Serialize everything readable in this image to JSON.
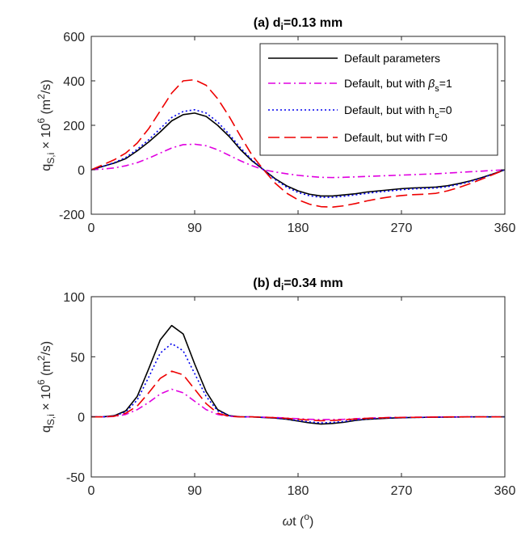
{
  "chart_data": [
    {
      "type": "line",
      "title": "(a) d",
      "title_sub": "i",
      "title_tail": "=0.13 mm",
      "ylabel": {
        "base": "q",
        "sub": "S,i",
        "mid": " × 10",
        "sup": "6",
        "unit_open": " (m",
        "unit_sup": "2",
        "unit_close": "/s)"
      },
      "xlabel": "",
      "xlim": [
        0,
        360
      ],
      "ylim": [
        -200,
        600
      ],
      "xticks": [
        0,
        90,
        180,
        270,
        360
      ],
      "yticks": [
        -200,
        0,
        200,
        400,
        600
      ],
      "xtick_labels": [
        "0",
        "90",
        "180",
        "270",
        "360"
      ],
      "ytick_labels": [
        "-200",
        "0",
        "200",
        "400",
        "600"
      ],
      "grid": false,
      "legend_position": "top-right",
      "x": [
        0,
        10,
        20,
        30,
        40,
        50,
        60,
        70,
        80,
        90,
        100,
        110,
        120,
        130,
        140,
        150,
        160,
        170,
        180,
        190,
        200,
        210,
        220,
        230,
        240,
        250,
        260,
        270,
        280,
        290,
        300,
        310,
        320,
        330,
        340,
        350,
        360
      ],
      "series": [
        {
          "name": "Default parameters",
          "color": "#000000",
          "dash": "none",
          "values": [
            0,
            15,
            30,
            50,
            85,
            125,
            170,
            220,
            248,
            255,
            240,
            200,
            150,
            90,
            40,
            0,
            -40,
            -72,
            -95,
            -110,
            -118,
            -118,
            -113,
            -108,
            -100,
            -95,
            -90,
            -85,
            -82,
            -80,
            -78,
            -72,
            -62,
            -50,
            -35,
            -18,
            0
          ]
        },
        {
          "name_prefix": "Default, but with ",
          "name_sym": "β",
          "name_sub": "s",
          "name_tail": "=1",
          "color": "#e000e0",
          "dash": "9,4,2,4",
          "values": [
            0,
            3,
            8,
            18,
            32,
            52,
            75,
            98,
            113,
            115,
            108,
            90,
            65,
            40,
            18,
            0,
            -10,
            -18,
            -25,
            -30,
            -34,
            -35,
            -34,
            -32,
            -30,
            -28,
            -26,
            -24,
            -22,
            -20,
            -18,
            -15,
            -12,
            -9,
            -6,
            -3,
            0
          ]
        },
        {
          "name_prefix": "Default, but with h",
          "name_sub": "c",
          "name_tail": "=0",
          "color": "#0000ee",
          "dash": "2,3",
          "values": [
            0,
            15,
            32,
            55,
            92,
            135,
            185,
            235,
            262,
            270,
            255,
            215,
            160,
            98,
            44,
            0,
            -44,
            -78,
            -102,
            -117,
            -124,
            -124,
            -119,
            -113,
            -106,
            -100,
            -95,
            -90,
            -86,
            -84,
            -82,
            -76,
            -66,
            -53,
            -37,
            -19,
            0
          ]
        },
        {
          "name_prefix": "Default, but with ",
          "name_sym": "Γ",
          "name_sub": "",
          "name_tail": "=0",
          "color": "#ee0000",
          "dash": "14,6",
          "values": [
            0,
            22,
            45,
            75,
            120,
            185,
            265,
            345,
            400,
            405,
            380,
            320,
            240,
            150,
            65,
            0,
            -60,
            -105,
            -135,
            -155,
            -166,
            -168,
            -162,
            -152,
            -140,
            -130,
            -122,
            -116,
            -112,
            -110,
            -106,
            -95,
            -80,
            -62,
            -42,
            -21,
            0
          ]
        }
      ]
    },
    {
      "type": "line",
      "title": "(b) d",
      "title_sub": "i",
      "title_tail": "=0.34 mm",
      "ylabel": {
        "base": "q",
        "sub": "S,i",
        "mid": " × 10",
        "sup": "6",
        "unit_open": " (m",
        "unit_sup": "2",
        "unit_close": "/s)"
      },
      "xlabel": {
        "sym": "ω",
        "base": "t (",
        "sup": "o",
        "close": ")"
      },
      "xlim": [
        0,
        360
      ],
      "ylim": [
        -50,
        100
      ],
      "xticks": [
        0,
        90,
        180,
        270,
        360
      ],
      "yticks": [
        -50,
        0,
        50,
        100
      ],
      "xtick_labels": [
        "0",
        "90",
        "180",
        "270",
        "360"
      ],
      "ytick_labels": [
        "-50",
        "0",
        "50",
        "100"
      ],
      "grid": false,
      "x": [
        0,
        10,
        20,
        30,
        40,
        50,
        60,
        70,
        80,
        90,
        100,
        110,
        120,
        130,
        140,
        150,
        160,
        170,
        180,
        190,
        200,
        210,
        220,
        230,
        240,
        250,
        260,
        270,
        280,
        290,
        300,
        310,
        320,
        330,
        340,
        350,
        360
      ],
      "series": [
        {
          "name": "Default parameters",
          "color": "#000000",
          "dash": "none",
          "values": [
            0,
            0,
            1,
            5,
            17,
            40,
            64,
            76,
            69,
            44,
            21,
            6,
            1,
            0,
            0,
            -0.5,
            -1,
            -2,
            -3.5,
            -5,
            -6,
            -5.5,
            -4.5,
            -3,
            -2,
            -1.5,
            -1,
            -0.8,
            -0.5,
            -0.4,
            -0.3,
            -0.2,
            -0.1,
            0,
            0,
            0,
            0
          ]
        },
        {
          "name_prefix": "Default, but with ",
          "name_sym": "β",
          "name_sub": "s",
          "name_tail": "=1",
          "color": "#e000e0",
          "dash": "9,4,2,4",
          "values": [
            0,
            0,
            0.3,
            2,
            6,
            12,
            19,
            23,
            20,
            13,
            6,
            2,
            0.5,
            0,
            0,
            -0.3,
            -0.5,
            -1,
            -1.5,
            -2,
            -2.3,
            -2.2,
            -2,
            -1.5,
            -1.1,
            -0.8,
            -0.5,
            -0.4,
            -0.3,
            -0.2,
            -0.1,
            0,
            0,
            0,
            0,
            0,
            0
          ]
        },
        {
          "name_prefix": "Default, but with h",
          "name_sub": "c",
          "name_tail": "=0",
          "color": "#0000ee",
          "dash": "2,3",
          "values": [
            0,
            0,
            0.8,
            4,
            14,
            33,
            53,
            61,
            55,
            36,
            17,
            5,
            1,
            0,
            0,
            -0.5,
            -1,
            -1.8,
            -3,
            -4.2,
            -5,
            -4.6,
            -3.8,
            -2.6,
            -1.8,
            -1.2,
            -0.9,
            -0.7,
            -0.5,
            -0.4,
            -0.3,
            -0.2,
            -0.1,
            0,
            0,
            0,
            0
          ]
        },
        {
          "name_prefix": "Default, but with ",
          "name_sym": "Γ",
          "name_sub": "",
          "name_tail": "=0",
          "color": "#ee0000",
          "dash": "14,6",
          "values": [
            0,
            0,
            0.5,
            3,
            9,
            20,
            32,
            38,
            35,
            23,
            11,
            3,
            0.5,
            0,
            0,
            -0.3,
            -0.7,
            -1.2,
            -2,
            -2.7,
            -3.2,
            -3,
            -2.5,
            -1.8,
            -1.2,
            -0.9,
            -0.6,
            -0.5,
            -0.4,
            -0.3,
            -0.2,
            -0.1,
            0,
            0,
            0,
            0,
            0
          ]
        }
      ]
    }
  ]
}
